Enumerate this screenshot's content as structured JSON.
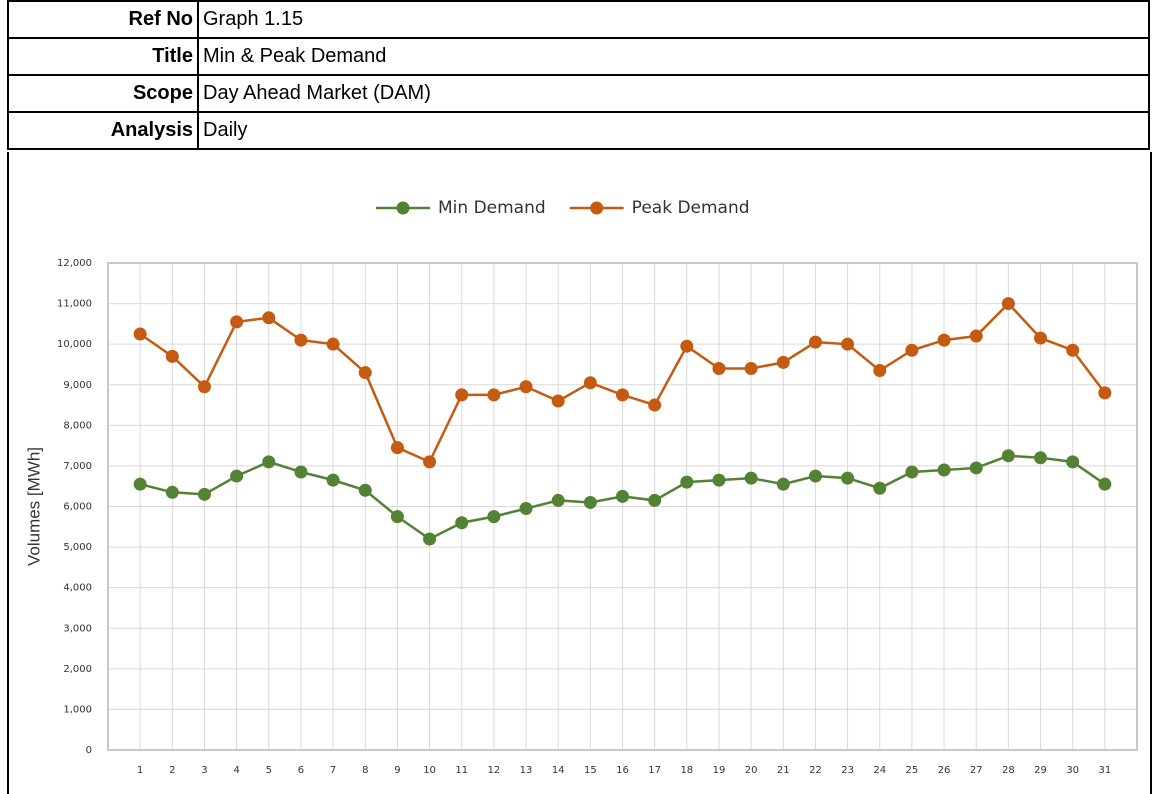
{
  "header": {
    "rows": [
      {
        "label": "Ref No",
        "value": "Graph 1.15"
      },
      {
        "label": "Title",
        "value": "Min & Peak Demand"
      },
      {
        "label": "Scope",
        "value": "Day Ahead Market (DAM)"
      },
      {
        "label": "Analysis",
        "value": "Daily"
      }
    ]
  },
  "chart_data": {
    "type": "line",
    "ylabel": "Volumes [MWh]",
    "categories": [
      "1",
      "2",
      "3",
      "4",
      "5",
      "6",
      "7",
      "8",
      "9",
      "10",
      "11",
      "12",
      "13",
      "14",
      "15",
      "16",
      "17",
      "18",
      "19",
      "20",
      "21",
      "22",
      "23",
      "24",
      "25",
      "26",
      "27",
      "28",
      "29",
      "30",
      "31"
    ],
    "series": [
      {
        "name": "Min Demand",
        "color": "#548235",
        "values": [
          6550,
          6350,
          6300,
          6750,
          7100,
          6850,
          6650,
          6400,
          5750,
          5200,
          5600,
          5750,
          5950,
          6150,
          6100,
          6250,
          6150,
          6600,
          6650,
          6700,
          6550,
          6750,
          6700,
          6450,
          6850,
          6900,
          6950,
          7250,
          7200,
          7100,
          6550
        ]
      },
      {
        "name": "Peak Demand",
        "color": "#c55a11",
        "values": [
          10250,
          9700,
          8950,
          10550,
          10650,
          10100,
          10000,
          9300,
          7450,
          7100,
          8750,
          8750,
          8950,
          8600,
          9050,
          8750,
          8500,
          9950,
          9400,
          9400,
          9550,
          10050,
          10000,
          9350,
          9850,
          10100,
          10200,
          11000,
          10150,
          9850,
          8800
        ]
      }
    ],
    "ylim": [
      0,
      12000
    ],
    "yticks": [
      0,
      {
        "value": 1000,
        "label": "1,000"
      },
      {
        "value": 2000,
        "label": "2,000"
      },
      {
        "value": 3000,
        "label": "3,000"
      },
      {
        "value": 4000,
        "label": "4,000"
      },
      {
        "value": 5000,
        "label": "5,000"
      },
      {
        "value": 6000,
        "label": "6,000"
      },
      {
        "value": 7000,
        "label": "7,000"
      },
      {
        "value": 8000,
        "label": "8,000"
      },
      {
        "value": 9000,
        "label": "9,000"
      },
      {
        "value": 10000,
        "label": "10,000"
      },
      {
        "value": 11000,
        "label": "11,000"
      },
      {
        "value": 12000,
        "label": "12,000"
      }
    ],
    "grid": true,
    "legend": "top"
  }
}
